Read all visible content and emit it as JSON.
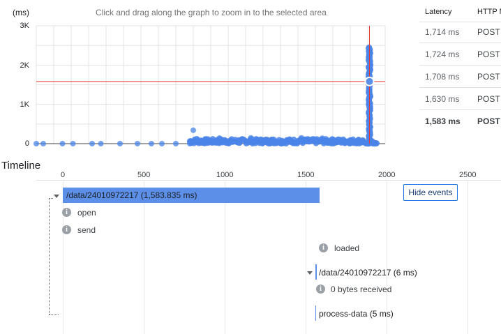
{
  "chart": {
    "y_unit": "(ms)",
    "hint": "Click and drag along the graph to zoom in to the selected area",
    "y_ticks": [
      "3K",
      "2K",
      "1K",
      "0"
    ],
    "x_ticks": [
      "0",
      "500",
      "1000",
      "1500",
      "2000"
    ]
  },
  "table": {
    "headers": [
      "Latency",
      "HTTP M"
    ],
    "rows": [
      {
        "latency": "1,714 ms",
        "method": "POST"
      },
      {
        "latency": "1,724 ms",
        "method": "POST"
      },
      {
        "latency": "1,708 ms",
        "method": "POST"
      },
      {
        "latency": "1,630 ms",
        "method": "POST"
      },
      {
        "latency": "1,583 ms",
        "method": "POST"
      }
    ]
  },
  "timeline": {
    "title": "Timeline",
    "axis": [
      "0",
      "500",
      "1000",
      "1500",
      "2000",
      "2500"
    ],
    "hide_events_label": "Hide events",
    "main_span": "/data/24010972217 (1,583.835 ms)",
    "events": [
      "open",
      "send",
      "loaded"
    ],
    "child_span": "/data/24010972217 (6 ms)",
    "child_event": "0 bytes received",
    "process_span": "process-data (5 ms)"
  },
  "chart_data": {
    "type": "scatter",
    "title": "Click and drag along the graph to zoom in to the selected area",
    "ylabel": "(ms)",
    "xlim": [
      0,
      2000
    ],
    "ylim": [
      0,
      3000
    ],
    "x_ticks": [
      0,
      500,
      1000,
      1500,
      2000
    ],
    "y_ticks": [
      0,
      1000,
      2000,
      3000
    ],
    "grid": true,
    "crosshair": {
      "x": 1910,
      "y": 1583
    },
    "selected_point": {
      "x": 1910,
      "y": 1583
    },
    "series": [
      {
        "name": "sparse",
        "points": [
          [
            0,
            0
          ],
          [
            40,
            0
          ],
          [
            150,
            0
          ],
          [
            210,
            0
          ],
          [
            320,
            0
          ],
          [
            370,
            0
          ],
          [
            480,
            0
          ],
          [
            580,
            0
          ],
          [
            660,
            0
          ],
          [
            720,
            0
          ],
          [
            800,
            0
          ],
          [
            880,
            0
          ],
          [
            900,
            340
          ]
        ]
      },
      {
        "name": "dense",
        "x_range": [
          880,
          1880
        ],
        "y_range": [
          0,
          120
        ]
      },
      {
        "name": "spike",
        "x": 1910,
        "y_range": [
          0,
          2450
        ]
      }
    ]
  }
}
